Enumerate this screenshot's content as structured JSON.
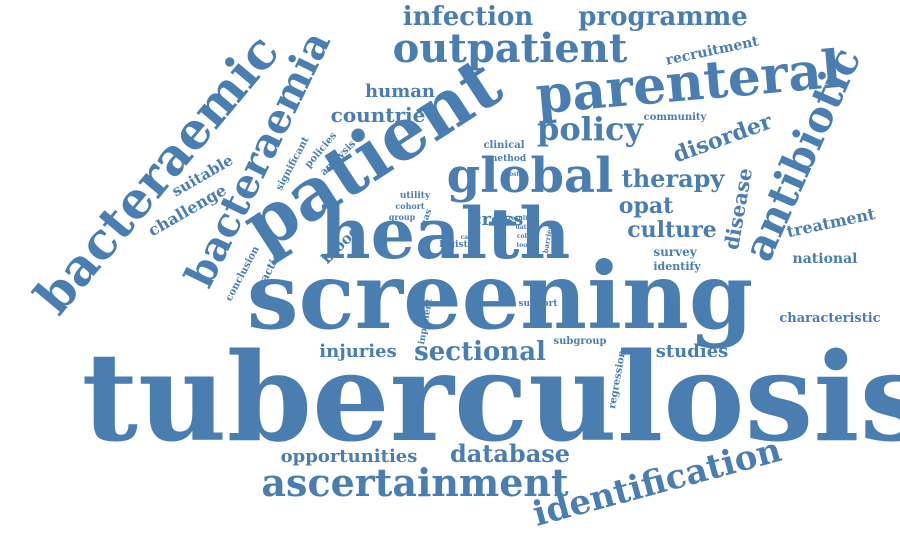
{
  "color": "#4a7db0",
  "words": [
    {
      "text": "tuberculosis",
      "weight": 1.0
    },
    {
      "text": "screening",
      "weight": 0.82
    },
    {
      "text": "health",
      "weight": 0.62
    },
    {
      "text": "patient",
      "weight": 0.62
    },
    {
      "text": "bacteraemic",
      "weight": 0.55
    },
    {
      "text": "bacteraemia",
      "weight": 0.48
    },
    {
      "text": "parenteral",
      "weight": 0.5
    },
    {
      "text": "outpatient",
      "weight": 0.42
    },
    {
      "text": "global",
      "weight": 0.42
    },
    {
      "text": "antibiotic",
      "weight": 0.42
    },
    {
      "text": "identification",
      "weight": 0.4
    },
    {
      "text": "ascertainment",
      "weight": 0.38
    },
    {
      "text": "policy",
      "weight": 0.32
    },
    {
      "text": "infection",
      "weight": 0.26
    },
    {
      "text": "programme",
      "weight": 0.26
    },
    {
      "text": "sectional",
      "weight": 0.26
    },
    {
      "text": "database",
      "weight": 0.24
    },
    {
      "text": "therapy",
      "weight": 0.24
    },
    {
      "text": "culture",
      "weight": 0.22
    },
    {
      "text": "opat",
      "weight": 0.22
    },
    {
      "text": "disorder",
      "weight": 0.22
    },
    {
      "text": "disease",
      "weight": 0.2
    },
    {
      "text": "countrie",
      "weight": 0.18
    },
    {
      "text": "human",
      "weight": 0.16
    },
    {
      "text": "cross",
      "weight": 0.18
    },
    {
      "text": "studies",
      "weight": 0.16
    },
    {
      "text": "injuries",
      "weight": 0.16
    },
    {
      "text": "opportunities",
      "weight": 0.16
    },
    {
      "text": "treatment",
      "weight": 0.14
    },
    {
      "text": "challenge",
      "weight": 0.14
    },
    {
      "text": "suitable",
      "weight": 0.14
    },
    {
      "text": "blood",
      "weight": 0.13
    },
    {
      "text": "recruitment",
      "weight": 0.12
    },
    {
      "text": "national",
      "weight": 0.12
    },
    {
      "text": "characteristic",
      "weight": 0.12
    },
    {
      "text": "survey",
      "weight": 0.1
    },
    {
      "text": "identify",
      "weight": 0.09
    },
    {
      "text": "practice",
      "weight": 0.09
    },
    {
      "text": "conclusion",
      "weight": 0.08
    },
    {
      "text": "significant",
      "weight": 0.08
    },
    {
      "text": "policies",
      "weight": 0.08
    },
    {
      "text": "analysis",
      "weight": 0.08
    },
    {
      "text": "clinical",
      "weight": 0.08
    },
    {
      "text": "community",
      "weight": 0.08
    },
    {
      "text": "method",
      "weight": 0.07
    },
    {
      "text": "subgroup",
      "weight": 0.07
    },
    {
      "text": "regression",
      "weight": 0.07
    },
    {
      "text": "utility",
      "weight": 0.07
    },
    {
      "text": "cohort",
      "weight": 0.06
    },
    {
      "text": "group",
      "weight": 0.06
    },
    {
      "text": "mas",
      "weight": 0.06
    },
    {
      "text": "logistic",
      "weight": 0.06
    },
    {
      "text": "support",
      "weight": 0.06
    },
    {
      "text": "inpatient",
      "weight": 0.06
    },
    {
      "text": "most",
      "weight": 0.05
    },
    {
      "text": "result",
      "weight": 0.05
    },
    {
      "text": "data",
      "weight": 0.05
    },
    {
      "text": "coli",
      "weight": 0.05
    },
    {
      "text": "tool",
      "weight": 0.05
    },
    {
      "text": "case",
      "weight": 0.05
    },
    {
      "text": "barrier",
      "weight": 0.05
    }
  ]
}
